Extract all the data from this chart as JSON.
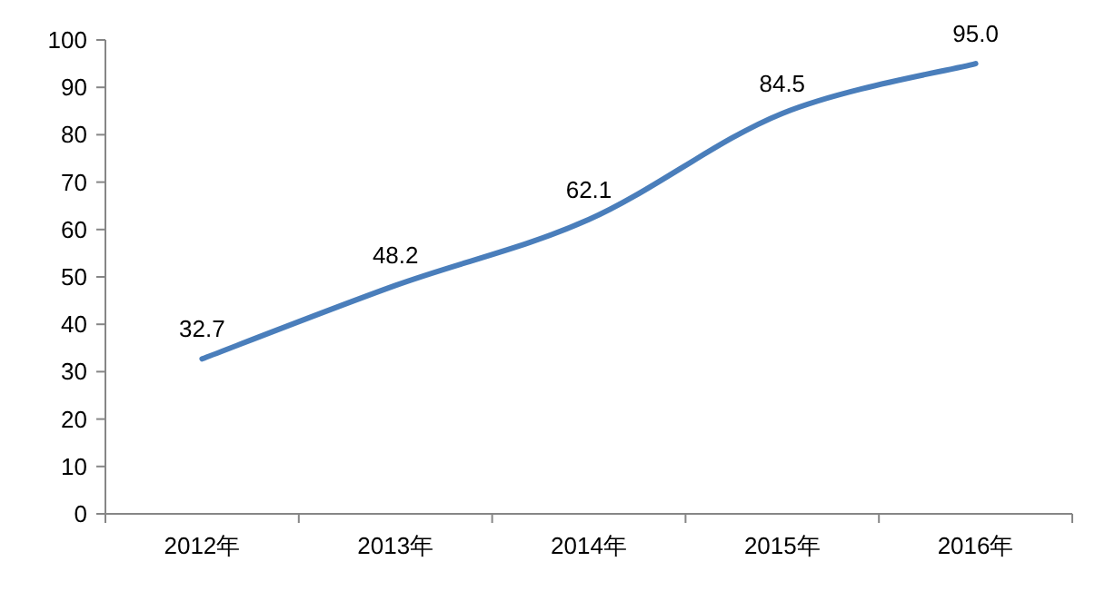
{
  "chart_data": {
    "type": "line",
    "categories": [
      "2012年",
      "2013年",
      "2014年",
      "2015年",
      "2016年"
    ],
    "series": [
      {
        "color": "#4a7ebb",
        "values": [
          32.7,
          48.2,
          62.1,
          84.5,
          95.0
        ],
        "value_labels": [
          "32.7",
          "48.2",
          "62.1",
          "84.5",
          "95.0"
        ]
      }
    ],
    "ylim": [
      0,
      100
    ],
    "yticks": [
      0,
      10,
      20,
      30,
      40,
      50,
      60,
      70,
      80,
      90,
      100
    ]
  }
}
